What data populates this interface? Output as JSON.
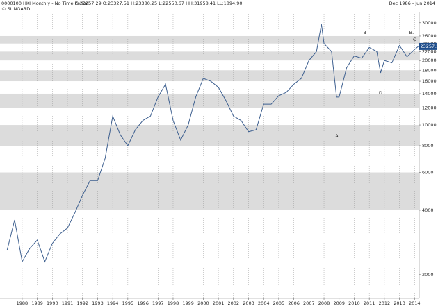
{
  "chart_data": {
    "type": "line",
    "title": "0000100 HKI Monthly -  No Time Period",
    "quote": "C:23257.29 O:23327.51 H:23380.25 L:22550.67 HH:31958.41 LL:1894.90",
    "date_range": "Dec 1986 - Jun 2014",
    "source": "© SUNGARD",
    "last_price": 23257.29,
    "log_scale": true,
    "grid": true,
    "x": [
      1987.0,
      1987.5,
      1988.0,
      1988.5,
      1989.0,
      1989.5,
      1990.0,
      1990.5,
      1991.0,
      1991.5,
      1992.0,
      1992.5,
      1993.0,
      1993.5,
      1994.0,
      1994.5,
      1995.0,
      1995.5,
      1996.0,
      1996.5,
      1997.0,
      1997.5,
      1998.0,
      1998.5,
      1999.0,
      1999.5,
      2000.0,
      2000.5,
      2001.0,
      2001.5,
      2002.0,
      2002.5,
      2003.0,
      2003.5,
      2004.0,
      2004.5,
      2005.0,
      2005.5,
      2006.0,
      2006.5,
      2007.0,
      2007.5,
      2007.83,
      2008.0,
      2008.5,
      2008.83,
      2009.0,
      2009.5,
      2010.0,
      2010.5,
      2011.0,
      2011.5,
      2011.75,
      2012.0,
      2012.5,
      2013.0,
      2013.5,
      2014.0,
      2014.25
    ],
    "series": [
      {
        "color": "#3d5f8f",
        "values": [
          2600,
          3600,
          2300,
          2650,
          2900,
          2300,
          2800,
          3100,
          3300,
          3900,
          4700,
          5500,
          5500,
          7000,
          11000,
          9000,
          8000,
          9500,
          10500,
          11000,
          13500,
          15500,
          10500,
          8500,
          10000,
          13500,
          16500,
          16000,
          15000,
          13000,
          11000,
          10500,
          9300,
          9500,
          12500,
          12500,
          13700,
          14200,
          15500,
          16500,
          20000,
          22000,
          29500,
          24000,
          22000,
          13500,
          13500,
          18500,
          21000,
          20500,
          23000,
          22000,
          17500,
          20000,
          19500,
          23500,
          20800,
          22500,
          23257.29
        ]
      }
    ],
    "annotations": [
      {
        "text": "A",
        "x": 2008.85,
        "y": 8880
      },
      {
        "text": "B",
        "x": 2010.7,
        "y": 27000
      },
      {
        "text": "B.",
        "x": 2013.8,
        "y": 27000
      },
      {
        "text": "C",
        "x": 2014.0,
        "y": 25000
      },
      {
        "text": "D",
        "x": 2011.75,
        "y": 14100
      }
    ],
    "xlim": [
      1986.53,
      2014.31
    ],
    "xticks": [
      1988,
      1989,
      1990,
      1991,
      1992,
      1993,
      1994,
      1995,
      1996,
      1997,
      1998,
      1999,
      2000,
      2001,
      2002,
      2003,
      2004,
      2005,
      2006,
      2007,
      2008,
      2009,
      2010,
      2011,
      2012,
      2013,
      2014
    ],
    "ylim": [
      1550,
      33000
    ],
    "yticks": [
      2000,
      4000,
      6000,
      8000,
      10000,
      12000,
      14000,
      16000,
      18000,
      20000,
      22000,
      24000,
      26000,
      30000
    ]
  }
}
